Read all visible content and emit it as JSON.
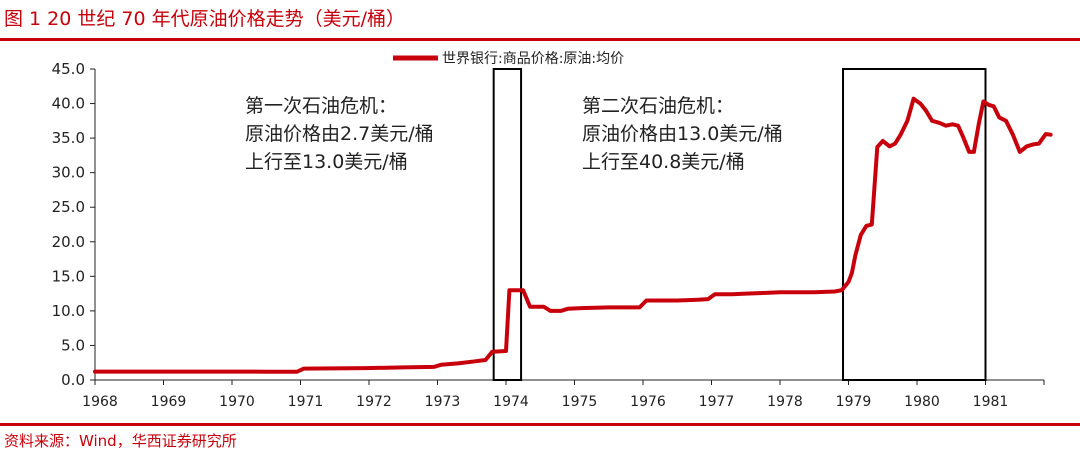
{
  "figure": {
    "title": "图 1  20 世纪 70 年代原油价格走势（美元/桶）",
    "source": "资料来源：Wind，华西证券研究所"
  },
  "colors": {
    "series": "#c8000b",
    "accent": "#c8000b",
    "axis": "#222222",
    "box": "#000000"
  },
  "chart_data": {
    "type": "line",
    "title": "",
    "xlabel": "",
    "ylabel": "",
    "ylim": [
      0,
      45
    ],
    "xlim": [
      1968,
      1981.95
    ],
    "yticks": [
      "0.0",
      "5.0",
      "10.0",
      "15.0",
      "20.0",
      "25.0",
      "30.0",
      "35.0",
      "40.0",
      "45.0"
    ],
    "xticks": [
      "1968",
      "1969",
      "1970",
      "1971",
      "1972",
      "1973",
      "1974",
      "1975",
      "1976",
      "1977",
      "1978",
      "1979",
      "1980",
      "1981"
    ],
    "grid": false,
    "legend": "top-center",
    "series": [
      {
        "name": "世界银行:商品价格:原油:均价",
        "points": [
          [
            1968.0,
            1.21
          ],
          [
            1969.0,
            1.21
          ],
          [
            1970.0,
            1.21
          ],
          [
            1970.5,
            1.2
          ],
          [
            1970.95,
            1.2
          ],
          [
            1971.05,
            1.65
          ],
          [
            1971.5,
            1.68
          ],
          [
            1971.95,
            1.72
          ],
          [
            1972.5,
            1.82
          ],
          [
            1972.95,
            1.9
          ],
          [
            1973.05,
            2.2
          ],
          [
            1973.3,
            2.4
          ],
          [
            1973.55,
            2.7
          ],
          [
            1973.7,
            2.9
          ],
          [
            1973.8,
            4.1
          ],
          [
            1974.0,
            4.2
          ],
          [
            1974.05,
            13.0
          ],
          [
            1974.25,
            13.0
          ],
          [
            1974.35,
            10.6
          ],
          [
            1974.55,
            10.6
          ],
          [
            1974.65,
            10.0
          ],
          [
            1974.8,
            10.0
          ],
          [
            1974.9,
            10.3
          ],
          [
            1975.1,
            10.4
          ],
          [
            1975.5,
            10.5
          ],
          [
            1975.95,
            10.5
          ],
          [
            1976.05,
            11.5
          ],
          [
            1976.5,
            11.5
          ],
          [
            1976.8,
            11.6
          ],
          [
            1976.95,
            11.7
          ],
          [
            1977.05,
            12.4
          ],
          [
            1977.3,
            12.4
          ],
          [
            1977.5,
            12.5
          ],
          [
            1977.8,
            12.6
          ],
          [
            1978.0,
            12.7
          ],
          [
            1978.5,
            12.7
          ],
          [
            1978.8,
            12.8
          ],
          [
            1978.9,
            13.0
          ],
          [
            1979.0,
            14.2
          ],
          [
            1979.05,
            15.5
          ],
          [
            1979.1,
            18.0
          ],
          [
            1979.18,
            21.0
          ],
          [
            1979.26,
            22.3
          ],
          [
            1979.34,
            22.5
          ],
          [
            1979.42,
            33.7
          ],
          [
            1979.5,
            34.6
          ],
          [
            1979.6,
            33.8
          ],
          [
            1979.68,
            34.2
          ],
          [
            1979.76,
            35.5
          ],
          [
            1979.86,
            37.5
          ],
          [
            1979.95,
            40.7
          ],
          [
            1980.05,
            40.0
          ],
          [
            1980.13,
            39.0
          ],
          [
            1980.22,
            37.5
          ],
          [
            1980.33,
            37.2
          ],
          [
            1980.42,
            36.8
          ],
          [
            1980.52,
            37.0
          ],
          [
            1980.6,
            36.8
          ],
          [
            1980.68,
            35.0
          ],
          [
            1980.76,
            33.0
          ],
          [
            1980.83,
            33.0
          ],
          [
            1980.9,
            37.0
          ],
          [
            1980.97,
            40.3
          ],
          [
            1981.05,
            39.8
          ],
          [
            1981.12,
            39.6
          ],
          [
            1981.2,
            38.0
          ],
          [
            1981.3,
            37.5
          ],
          [
            1981.4,
            35.5
          ],
          [
            1981.5,
            33.0
          ],
          [
            1981.6,
            33.8
          ],
          [
            1981.7,
            34.1
          ],
          [
            1981.78,
            34.2
          ],
          [
            1981.88,
            35.6
          ],
          [
            1981.95,
            35.5
          ]
        ]
      }
    ],
    "highlight_periods": [
      {
        "start": 1973.82,
        "end": 1974.22
      },
      {
        "start": 1978.92,
        "end": 1981.0
      }
    ],
    "annotations": [
      {
        "lines": [
          "第一次石油危机：",
          "原油价格由2.7美元/桶",
          "上行至13.0美元/桶"
        ]
      },
      {
        "lines": [
          "第二次石油危机：",
          "原油价格由13.0美元/桶",
          "上行至40.8美元/桶"
        ]
      }
    ]
  }
}
